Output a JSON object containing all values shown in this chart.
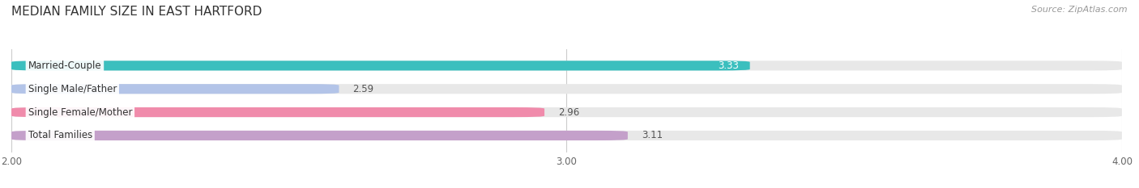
{
  "title": "MEDIAN FAMILY SIZE IN EAST HARTFORD",
  "source": "Source: ZipAtlas.com",
  "categories": [
    "Married-Couple",
    "Single Male/Father",
    "Single Female/Mother",
    "Total Families"
  ],
  "values": [
    3.33,
    2.59,
    2.96,
    3.11
  ],
  "bar_colors": [
    "#3bbfbe",
    "#b3c4e8",
    "#f08bab",
    "#c4a0ca"
  ],
  "bar_bg_color": "#e8e8e8",
  "x_min": 2.0,
  "x_max": 4.0,
  "x_ticks": [
    2.0,
    3.0,
    4.0
  ],
  "title_fontsize": 11,
  "label_fontsize": 8.5,
  "value_fontsize": 8.5,
  "source_fontsize": 8,
  "background_color": "#ffffff",
  "bar_height": 0.42,
  "value_inside_bar_idx": 0
}
